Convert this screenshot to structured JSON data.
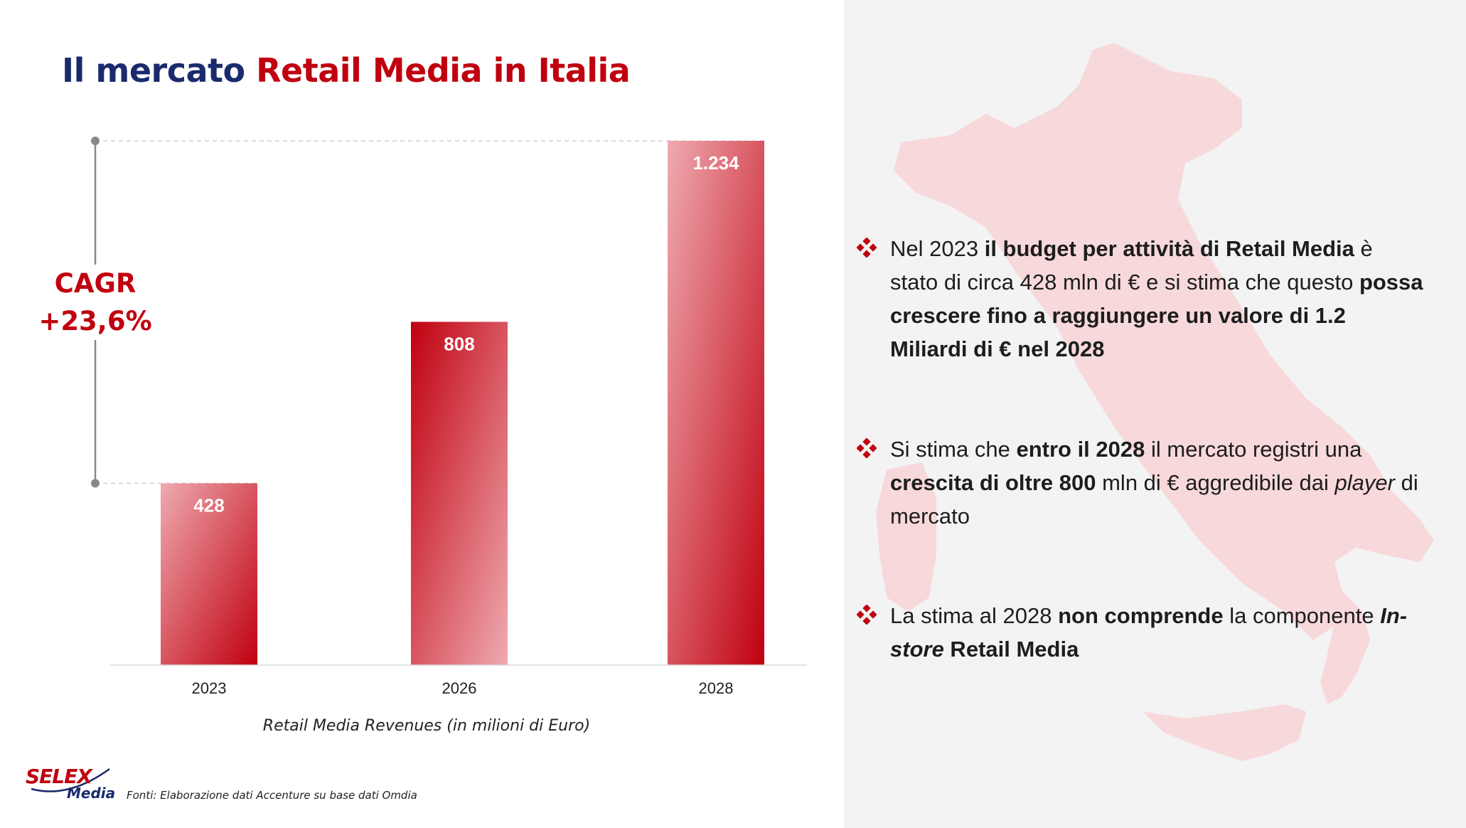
{
  "title": {
    "part1": "Il mercato ",
    "part2": "Retail Media in Italia"
  },
  "cagr": {
    "line1": "CAGR",
    "line2": "+23,6%"
  },
  "chart_data": {
    "type": "bar",
    "categories": [
      "2023",
      "2026",
      "2028"
    ],
    "values": [
      428,
      808,
      1234
    ],
    "value_labels": [
      "428",
      "808",
      "1.234"
    ],
    "xlabel": "Retail Media Revenues (in milioni di Euro)",
    "ylim": [
      0,
      1234
    ],
    "grid": false,
    "colors": {
      "bar_dark": "#c0000f",
      "bar_light": "#efaab0"
    }
  },
  "source": "Fonti: Elaborazione dati Accenture su base dati Omdia",
  "logo": {
    "brand": "SELEX",
    "sub": "Media"
  },
  "bullets": [
    {
      "segments": [
        {
          "text": "Nel 2023 ",
          "style": "normal"
        },
        {
          "text": "il budget per attività di Retail Media",
          "style": "bold"
        },
        {
          "text": " è stato di circa 428 mln di € e si stima che questo ",
          "style": "normal"
        },
        {
          "text": "possa crescere fino a raggiungere un valore di 1.2 Miliardi di € nel 2028",
          "style": "bold"
        }
      ]
    },
    {
      "segments": [
        {
          "text": "Si stima che ",
          "style": "normal"
        },
        {
          "text": "entro il 2028",
          "style": "bold"
        },
        {
          "text": " il mercato registri una ",
          "style": "normal"
        },
        {
          "text": "crescita di oltre 800",
          "style": "bold"
        },
        {
          "text": " mln di € aggredibile dai ",
          "style": "normal"
        },
        {
          "text": "player",
          "style": "italic"
        },
        {
          "text": " di mercato",
          "style": "normal"
        }
      ]
    },
    {
      "segments": [
        {
          "text": "La stima al 2028 ",
          "style": "normal"
        },
        {
          "text": "non comprende",
          "style": "bold"
        },
        {
          "text": " la componente ",
          "style": "normal"
        },
        {
          "text": "In-store",
          "style": "bolditalic"
        },
        {
          "text": " Retail Media",
          "style": "bold"
        }
      ]
    }
  ],
  "colors": {
    "accent": "#c0000f",
    "navy": "#1a2a6c",
    "panel": "#f3f3f3",
    "map": "#f8d3d6"
  }
}
